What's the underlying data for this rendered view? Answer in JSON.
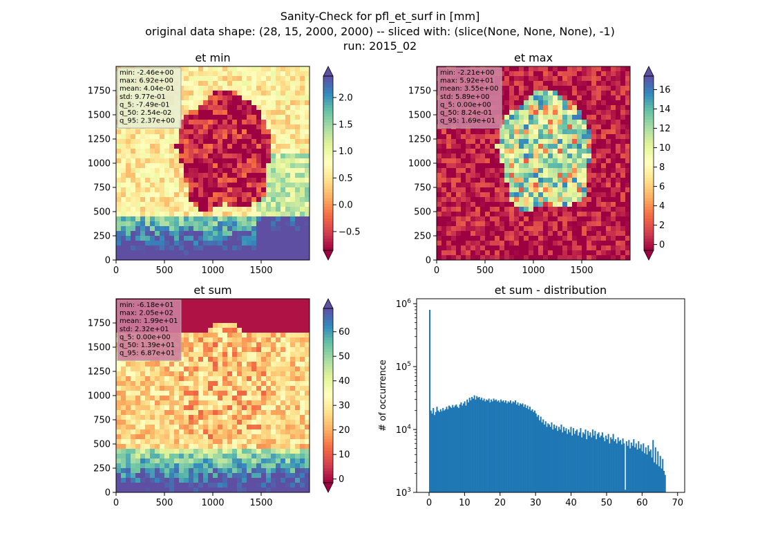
{
  "figure": {
    "title_lines": [
      "Sanity-Check for pfl_et_surf in [mm]",
      "original data shape: (28, 15, 2000, 2000) -- sliced with: (slice(None, None, None), -1)",
      "run: 2015_02"
    ]
  },
  "colors": {
    "spectral": [
      "#9e0142",
      "#d53e4f",
      "#f46d43",
      "#fdae61",
      "#fee08b",
      "#ffffbf",
      "#e6f598",
      "#abdda4",
      "#66c2a5",
      "#3288bd",
      "#5e4fa2"
    ],
    "hist_bar": "#1f77b4",
    "stats_box_light": "#e8eecf",
    "stats_box_dark": "#cc7f9f"
  },
  "chart_data": [
    {
      "type": "heatmap",
      "title": "et min",
      "x_ticks": [
        "0",
        "500",
        "1000",
        "1500"
      ],
      "y_ticks": [
        "0",
        "250",
        "500",
        "750",
        "1000",
        "1250",
        "1500",
        "1750"
      ],
      "xlim": [
        0,
        2000
      ],
      "ylim": [
        0,
        2000
      ],
      "colorbar": {
        "vmin": -0.85,
        "vmax": 2.4,
        "ticks": [
          -0.5,
          0.0,
          0.5,
          1.0,
          1.5,
          2.0
        ],
        "tick_labels": [
          "−0.5",
          "0.0",
          "0.5",
          "1.0",
          "1.5",
          "2.0"
        ],
        "extend": "both"
      },
      "background_level": 0.45,
      "region_level": 0.04,
      "stats": [
        "min: -2.46e+00",
        "max: 6.92e+00",
        "mean: 4.04e-01",
        "std: 9.77e-01",
        "q_5: -7.49e-01",
        "q_50: 2.54e-02",
        "q_95: 2.37e+00"
      ]
    },
    {
      "type": "heatmap",
      "title": "et max",
      "x_ticks": [
        "0",
        "500",
        "1000",
        "1500"
      ],
      "y_ticks": [
        "0",
        "250",
        "500",
        "750",
        "1000",
        "1250",
        "1500",
        "1750"
      ],
      "xlim": [
        0,
        2000
      ],
      "ylim": [
        0,
        2000
      ],
      "colorbar": {
        "vmin": -0.6,
        "vmax": 17.4,
        "ticks": [
          0,
          2,
          4,
          6,
          8,
          10,
          12,
          14,
          16
        ],
        "tick_labels": [
          "0",
          "2",
          "4",
          "6",
          "8",
          "10",
          "12",
          "14",
          "16"
        ],
        "extend": "both"
      },
      "background_level": 0.04,
      "region_level": 0.75,
      "stats": [
        "min: -2.21e+00",
        "max: 5.92e+01",
        "mean: 3.55e+00",
        "std: 5.89e+00",
        "q_5: 0.00e+00",
        "q_50: 8.24e-01",
        "q_95: 1.69e+01"
      ]
    },
    {
      "type": "heatmap",
      "title": "et sum",
      "x_ticks": [
        "0",
        "500",
        "1000",
        "1500"
      ],
      "y_ticks": [
        "0",
        "250",
        "500",
        "750",
        "1000",
        "1250",
        "1500",
        "1750"
      ],
      "xlim": [
        0,
        2000
      ],
      "ylim": [
        0,
        2000
      ],
      "colorbar": {
        "vmin": -1.5,
        "vmax": 69.5,
        "ticks": [
          0,
          10,
          20,
          30,
          40,
          50,
          60
        ],
        "tick_labels": [
          "0",
          "10",
          "20",
          "30",
          "40",
          "50",
          "60"
        ],
        "extend": "both"
      },
      "background_level": 0.38,
      "region_level": 0.35,
      "stats": [
        "min: -6.18e+01",
        "max: 2.05e+02",
        "mean: 1.99e+01",
        "std: 2.32e+01",
        "q_5: 0.00e+00",
        "q_50: 1.39e+01",
        "q_95: 6.87e+01"
      ]
    },
    {
      "type": "bar",
      "title": "et sum - distribution",
      "ylabel": "# of occurrence",
      "yscale": "log",
      "xlim": [
        -3.5,
        72
      ],
      "ylim": [
        1000,
        1200000
      ],
      "x_ticks": [
        "0",
        "10",
        "20",
        "30",
        "40",
        "50",
        "60",
        "70"
      ],
      "x_tick_values": [
        0,
        10,
        20,
        30,
        40,
        50,
        60,
        70
      ],
      "y_ticks": [
        "10^3",
        "10^4",
        "10^5",
        "10^6"
      ],
      "y_tick_values": [
        1000,
        10000,
        100000,
        1000000
      ],
      "bin_start": 0,
      "bin_width": 0.34,
      "values": [
        800000,
        20000,
        18000,
        22000,
        17000,
        19000,
        23000,
        20000,
        19000,
        21000,
        19500,
        22000,
        20000,
        21000,
        23000,
        21000,
        24000,
        23000,
        22000,
        24500,
        22500,
        24000,
        25000,
        23000,
        22000,
        25000,
        27000,
        24000,
        26000,
        28000,
        24000,
        30000,
        27000,
        32000,
        29000,
        33000,
        31000,
        35000,
        30000,
        34000,
        32000,
        33000,
        30000,
        32000,
        29000,
        31000,
        28000,
        30000,
        29000,
        31000,
        27000,
        30000,
        28000,
        31000,
        29000,
        30000,
        28000,
        29000,
        27000,
        30000,
        28000,
        29000,
        27000,
        29000,
        26000,
        28000,
        27000,
        29000,
        26000,
        28000,
        27000,
        29000,
        25000,
        27000,
        24000,
        26000,
        25000,
        26000,
        23000,
        25000,
        22000,
        24000,
        21000,
        23000,
        20000,
        21000,
        19000,
        20000,
        18000,
        16000,
        17000,
        14000,
        16000,
        13000,
        14500,
        12000,
        13500,
        11000,
        12500,
        12000,
        11000,
        13000,
        10000,
        12000,
        10500,
        11500,
        9500,
        11000,
        10000,
        12000,
        9000,
        11000,
        9500,
        10500,
        8500,
        10000,
        9000,
        11000,
        8000,
        10500,
        8500,
        9500,
        10000,
        8000,
        9000,
        10500,
        7500,
        9000,
        8500,
        10000,
        7000,
        9500,
        8000,
        9000,
        7500,
        10000,
        8000,
        9500,
        7000,
        8500,
        9000,
        7500,
        8000,
        9000,
        7500,
        6500,
        8000,
        7000,
        8500,
        6000,
        7500,
        7000,
        8500,
        6500,
        7000,
        6000,
        7500,
        6500,
        6800,
        5800,
        7200,
        6000,
        1100,
        6500,
        5500,
        6800,
        5000,
        6200,
        5500,
        7000,
        5200,
        6000,
        4800,
        6500,
        5000,
        5800,
        4500,
        6000,
        4200,
        5200,
        4000,
        5600,
        4500,
        4800,
        3600,
        6800,
        3000,
        5200,
        2800,
        4500,
        2600,
        3800,
        2400,
        3400,
        2200,
        1900
      ]
    }
  ]
}
